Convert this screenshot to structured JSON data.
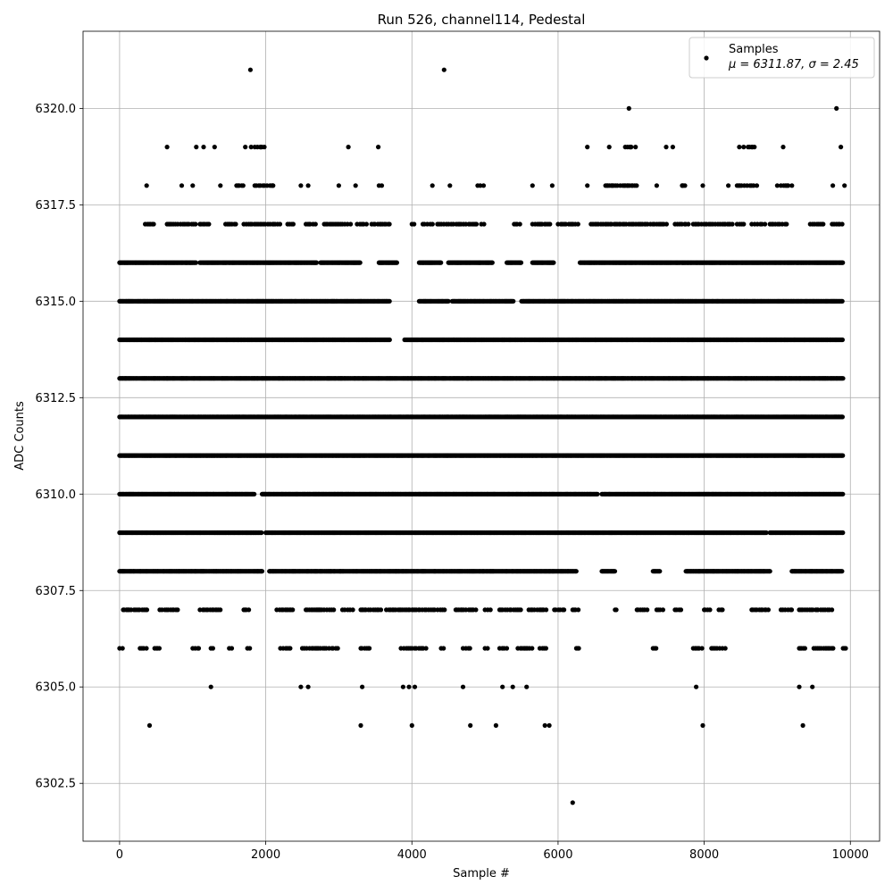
{
  "chart_data": {
    "type": "scatter",
    "title": "Run 526, channel114, Pedestal",
    "xlabel": "Sample #",
    "ylabel": "ADC Counts",
    "xlim": [
      -500,
      10400
    ],
    "ylim": [
      6301.0,
      6322.0
    ],
    "x_ticks": [
      0,
      2000,
      4000,
      6000,
      8000,
      10000
    ],
    "y_ticks": [
      6302.5,
      6305.0,
      6307.5,
      6310.0,
      6312.5,
      6315.0,
      6317.5,
      6320.0
    ],
    "x_tick_labels": [
      "0",
      "2000",
      "4000",
      "6000",
      "8000",
      "10000"
    ],
    "y_tick_labels": [
      "6302.5",
      "6305.0",
      "6307.5",
      "6310.0",
      "6312.5",
      "6315.0",
      "6317.5",
      "6320.0"
    ],
    "grid": true,
    "legend_position": "top-right",
    "marker_color": "#000000",
    "n_samples": 9900,
    "series": [
      {
        "legend_line1": "Samples",
        "legend_line2": "μ = 6311.87, σ = 2.45",
        "sparse_points": {
          "6302": [
            6200
          ],
          "6304": [
            410,
            3300,
            4000,
            4800,
            5150,
            5820,
            5880,
            7980,
            9350
          ],
          "6305": [
            1250,
            2480,
            2580,
            3320,
            3880,
            3960,
            4040,
            4700,
            5240,
            5380,
            5570,
            7890,
            9300,
            9480
          ],
          "6318": [
            370,
            850,
            1000,
            1380,
            1620,
            2100,
            2480,
            2580,
            3000,
            3230,
            4280,
            4520,
            4980,
            5650,
            5920,
            6400,
            6920,
            7020,
            7350,
            7700,
            7980,
            8330,
            8470,
            8720,
            9000,
            9200,
            9760,
            9920
          ],
          "6319": [
            650,
            1050,
            1150,
            1300,
            1720,
            1800,
            1930,
            1980,
            3130,
            3540,
            6400,
            6700,
            6920,
            7000,
            7060,
            7480,
            7570,
            8480,
            8540,
            8660,
            9080,
            9870
          ],
          "6320": [
            6970,
            9810
          ],
          "6321": [
            1790,
            4440
          ]
        },
        "sparse_runs": {
          "6306": [
            [
              0,
              50
            ],
            [
              280,
              380
            ],
            [
              480,
              560
            ],
            [
              1000,
              1100
            ],
            [
              1250,
              1300
            ],
            [
              1500,
              1550
            ],
            [
              1750,
              1800
            ],
            [
              2200,
              2350
            ],
            [
              2500,
              3000
            ],
            [
              3300,
              3420
            ],
            [
              3850,
              4200
            ],
            [
              4400,
              4450
            ],
            [
              4700,
              4800
            ],
            [
              5000,
              5050
            ],
            [
              5200,
              5300
            ],
            [
              5450,
              5650
            ],
            [
              5750,
              5850
            ],
            [
              6250,
              6300
            ],
            [
              7300,
              7350
            ],
            [
              7850,
              8000
            ],
            [
              8100,
              8300
            ],
            [
              9300,
              9400
            ],
            [
              9500,
              9800
            ],
            [
              9900,
              9950
            ]
          ],
          "6307": [
            [
              50,
              400
            ],
            [
              550,
              800
            ],
            [
              1100,
              1400
            ],
            [
              1700,
              1800
            ],
            [
              2150,
              2400
            ],
            [
              2550,
              2950
            ],
            [
              3050,
              3200
            ],
            [
              3300,
              3600
            ],
            [
              3650,
              4450
            ],
            [
              4600,
              4900
            ],
            [
              5000,
              5100
            ],
            [
              5200,
              5500
            ],
            [
              5600,
              5850
            ],
            [
              5950,
              6100
            ],
            [
              6200,
              6300
            ],
            [
              6780,
              6820
            ],
            [
              7080,
              7250
            ],
            [
              7350,
              7450
            ],
            [
              7600,
              7700
            ],
            [
              8000,
              8100
            ],
            [
              8200,
              8250
            ],
            [
              8650,
              8900
            ],
            [
              9050,
              9200
            ],
            [
              9300,
              9750
            ]
          ],
          "6317": [
            [
              350,
              500
            ],
            [
              650,
              1050
            ],
            [
              1100,
              1250
            ],
            [
              1450,
              1600
            ],
            [
              1700,
              2200
            ],
            [
              2300,
              2400
            ],
            [
              2550,
              2700
            ],
            [
              2800,
              3200
            ],
            [
              3250,
              3400
            ],
            [
              3450,
              3700
            ],
            [
              4000,
              4050
            ],
            [
              4150,
              4300
            ],
            [
              4350,
              4900
            ],
            [
              4950,
              5000
            ],
            [
              5400,
              5500
            ],
            [
              5650,
              5900
            ],
            [
              6000,
              6300
            ],
            [
              6450,
              7500
            ],
            [
              7600,
              7800
            ],
            [
              7850,
              8400
            ],
            [
              8450,
              8550
            ],
            [
              8650,
              8850
            ],
            [
              8900,
              9150
            ],
            [
              9450,
              9650
            ],
            [
              9750,
              9900
            ]
          ],
          "6318": [
            [
              1600,
              1700
            ],
            [
              1850,
              2100
            ],
            [
              3550,
              3600
            ],
            [
              4900,
              4950
            ],
            [
              6650,
              7100
            ],
            [
              7700,
              7750
            ],
            [
              8450,
              8700
            ],
            [
              9050,
              9150
            ]
          ],
          "6319": [
            [
              1850,
              1950
            ],
            [
              6950,
              7000
            ],
            [
              8600,
              8700
            ]
          ]
        },
        "dense_runs": {
          "6308": [
            [
              0,
              1950
            ],
            [
              2050,
              6250
            ],
            [
              6600,
              6780
            ],
            [
              7300,
              7400
            ],
            [
              7750,
              8900
            ],
            [
              9200,
              9950
            ]
          ],
          "6309": [
            [
              0,
              1950
            ],
            [
              2000,
              8850
            ],
            [
              8900,
              9950
            ]
          ],
          "6310": [
            [
              0,
              1850
            ],
            [
              1950,
              6550
            ],
            [
              6600,
              9950
            ]
          ],
          "6311": [
            [
              0,
              9950
            ]
          ],
          "6312": [
            [
              0,
              9950
            ]
          ],
          "6313": [
            [
              0,
              9950
            ]
          ],
          "6314": [
            [
              0,
              3700
            ],
            [
              3900,
              9950
            ]
          ],
          "6315": [
            [
              0,
              3700
            ],
            [
              4100,
              4500
            ],
            [
              4550,
              5400
            ],
            [
              5500,
              9950
            ]
          ],
          "6316": [
            [
              0,
              1050
            ],
            [
              1100,
              2700
            ],
            [
              2750,
              3300
            ],
            [
              3550,
              3800
            ],
            [
              4100,
              4400
            ],
            [
              4500,
              5100
            ],
            [
              5300,
              5500
            ],
            [
              5650,
              5950
            ],
            [
              6300,
              9950
            ]
          ]
        }
      }
    ]
  }
}
